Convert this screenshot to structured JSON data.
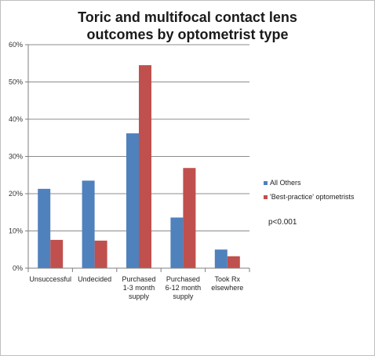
{
  "chart_data": {
    "type": "bar",
    "title_lines": [
      "Toric  and multifocal contact lens",
      "outcomes by optometrist type"
    ],
    "categories": [
      [
        "Unsuccessful"
      ],
      [
        "Undecided"
      ],
      [
        "Purchased",
        "1-3 month",
        "supply"
      ],
      [
        "Purchased",
        "6-12 month",
        "supply"
      ],
      [
        "Took Rx",
        "elsewhere"
      ]
    ],
    "series": [
      {
        "name": "All Others",
        "color": "#4f81bd",
        "values": [
          21.3,
          23.5,
          36.2,
          13.6,
          5.0
        ]
      },
      {
        "name": "'Best-practice' optometrists",
        "color": "#c0504d",
        "values": [
          7.6,
          7.4,
          54.5,
          26.9,
          3.2
        ]
      }
    ],
    "ylim": [
      0,
      60
    ],
    "yticks": [
      0,
      10,
      20,
      30,
      40,
      50,
      60
    ],
    "ytick_labels": [
      "0%",
      "10%",
      "20%",
      "30%",
      "40%",
      "50%",
      "60%"
    ],
    "grid": true,
    "legend_position": "right",
    "annotation": "p<0.001",
    "xlabel": "",
    "ylabel": ""
  }
}
